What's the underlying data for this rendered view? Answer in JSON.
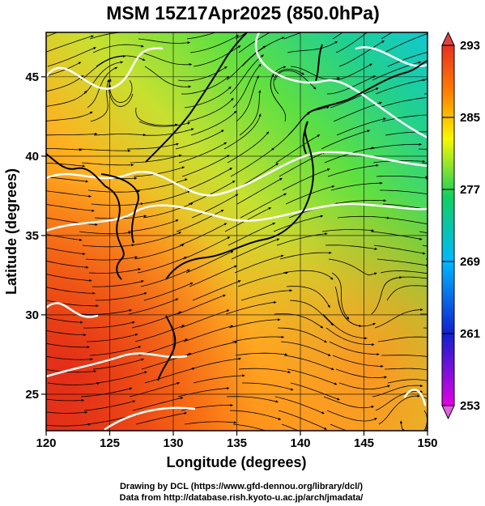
{
  "title": "MSM 15Z17Apr2025 (850.0hPa)",
  "x_axis": {
    "label": "Longitude (degrees)",
    "ticks": [
      "120",
      "125",
      "130",
      "135",
      "140",
      "145",
      "150"
    ],
    "range": [
      120,
      150
    ]
  },
  "y_axis": {
    "label": "Latitude  (degrees)",
    "ticks": [
      "25",
      "30",
      "35",
      "40",
      "45"
    ],
    "range": [
      22.7,
      47.8
    ]
  },
  "colorbar": {
    "labels": [
      "293",
      "285",
      "277",
      "269",
      "261",
      "253"
    ],
    "range": [
      253,
      293
    ],
    "colors": [
      "#e400e4",
      "#1020d0",
      "#00b8ff",
      "#10d060",
      "#f8f800",
      "#ff8000",
      "#e83020"
    ]
  },
  "credits": {
    "line1": "Drawing by DCL (https://www.gfd-dennou.org/library/dcl/)",
    "line2": "Data from http://database.rish.kyoto-u.ac.jp/arch/jmadata/"
  },
  "map": {
    "field": "temperature",
    "overlays": [
      "streamlines",
      "isotherms",
      "coastlines"
    ],
    "contour_color": "#ffffff"
  }
}
